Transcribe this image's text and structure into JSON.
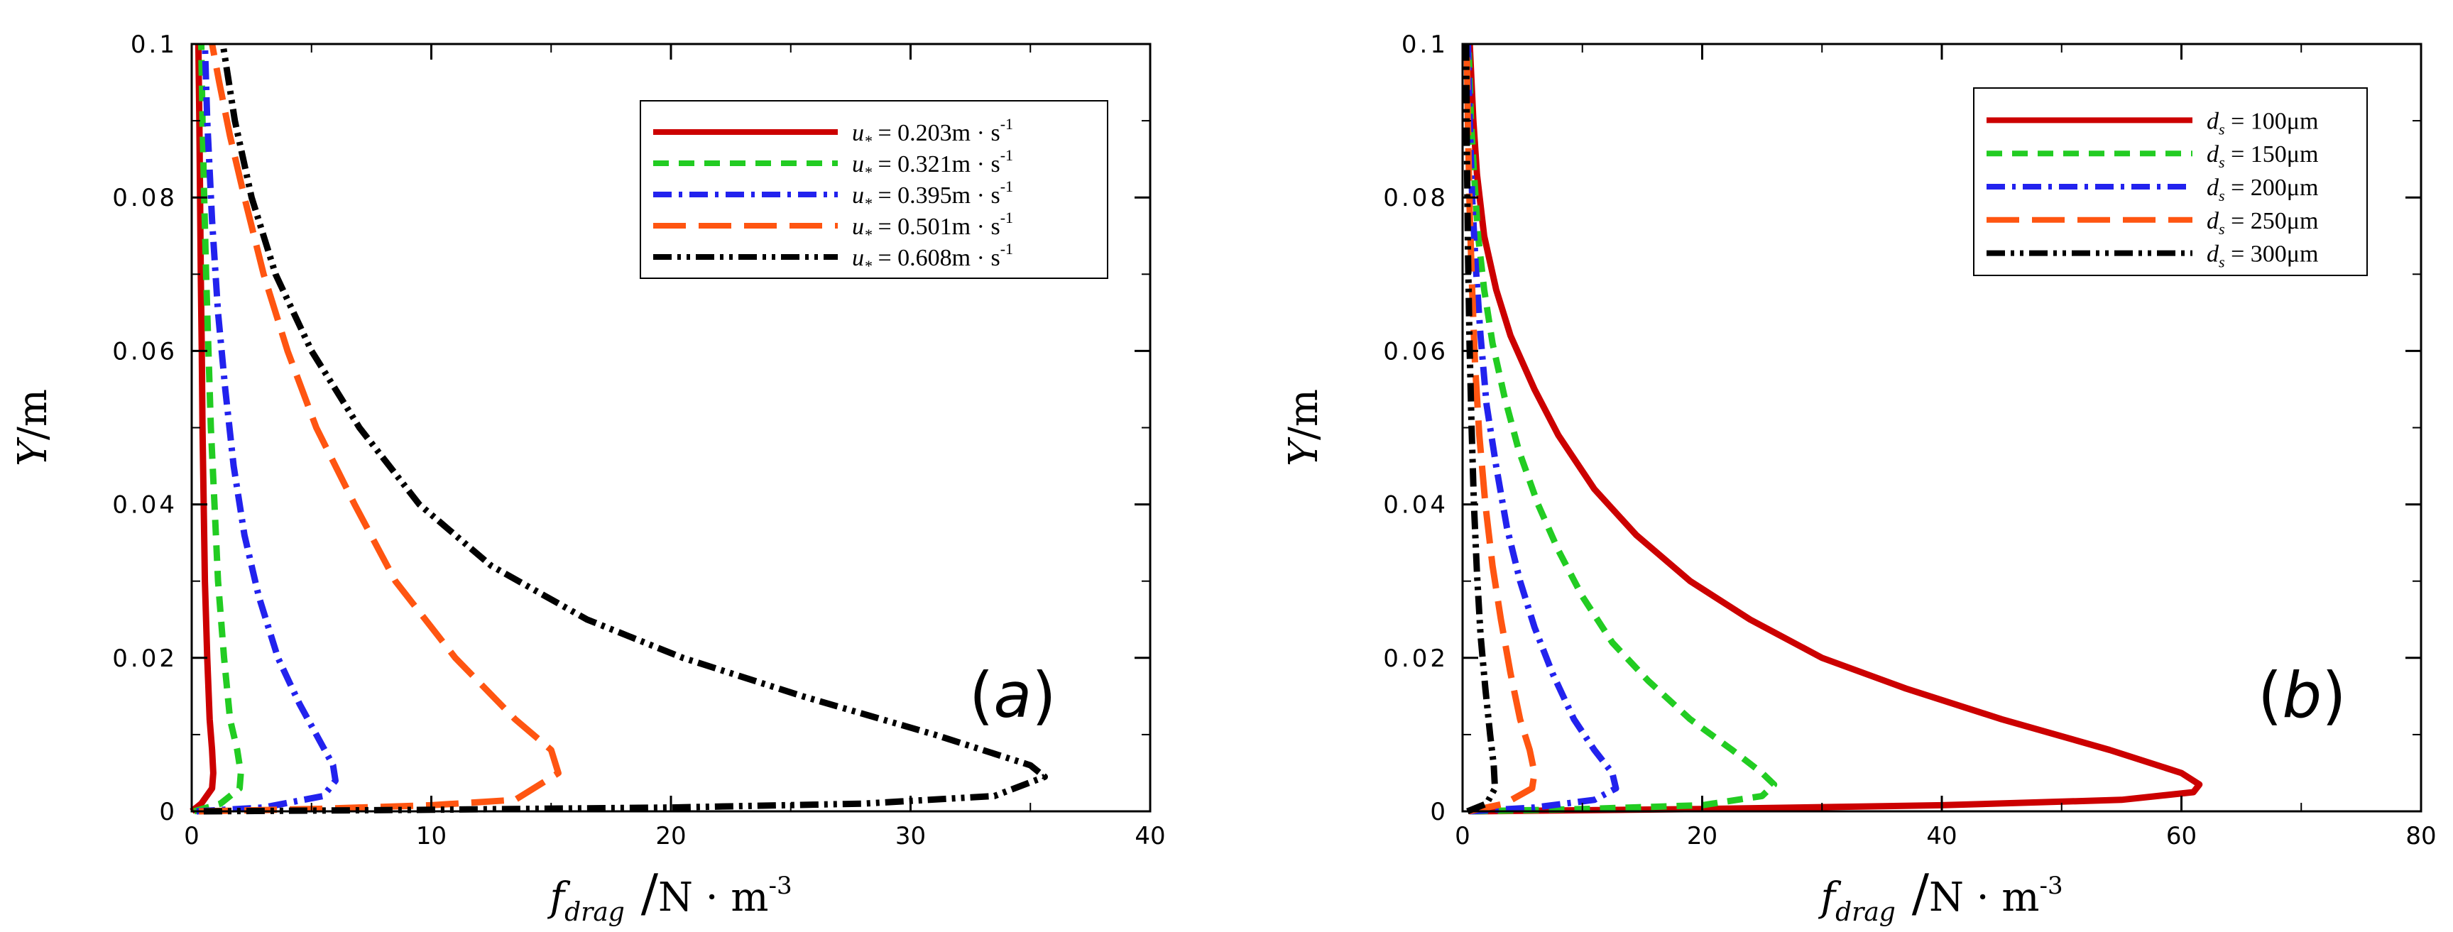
{
  "chart_data": [
    {
      "type": "line",
      "panel_label_pre": "(",
      "panel_label_var": "a",
      "panel_label_post": ")",
      "xlabel_main": "f",
      "xlabel_sub": "drag",
      "xlabel_unit": "N · m",
      "xlabel_exp": "-3",
      "ylabel_main": "Y",
      "ylabel_unit": "m",
      "xlim": [
        0,
        40
      ],
      "ylim": [
        0,
        0.1
      ],
      "xticks": [
        0,
        10,
        20,
        30,
        40
      ],
      "xtick_labels": [
        "0",
        "10",
        "20",
        "30",
        "40"
      ],
      "yticks": [
        0,
        0.02,
        0.04,
        0.06,
        0.08,
        0.1
      ],
      "ytick_labels": [
        "0",
        "0.02",
        "0.04",
        "0.06",
        "0.08",
        "0.1"
      ],
      "legend_position": "top-right",
      "grid": false,
      "series": [
        {
          "var": "u",
          "sub": "*",
          "value_text": " = 0.203m · s",
          "exp": "-1",
          "color": "#cc0000",
          "dash": "solid",
          "x": [
            0,
            0.4,
            0.85,
            0.9,
            0.85,
            0.75,
            0.65,
            0.55,
            0.5,
            0.45,
            0.42,
            0.38,
            0.35,
            0.32,
            0.3,
            0.28
          ],
          "y": [
            0,
            0.001,
            0.003,
            0.005,
            0.008,
            0.012,
            0.02,
            0.03,
            0.04,
            0.05,
            0.06,
            0.07,
            0.08,
            0.09,
            0.095,
            0.1
          ]
        },
        {
          "var": "u",
          "sub": "*",
          "value_text": " = 0.321m · s",
          "exp": "-1",
          "color": "#22cc22",
          "dash": "dashed",
          "x": [
            0.1,
            1.2,
            2.0,
            2.05,
            1.9,
            1.6,
            1.35,
            1.1,
            0.95,
            0.8,
            0.7,
            0.6,
            0.52,
            0.45,
            0.4
          ],
          "y": [
            0,
            0.001,
            0.003,
            0.005,
            0.008,
            0.012,
            0.02,
            0.03,
            0.04,
            0.05,
            0.06,
            0.07,
            0.08,
            0.09,
            0.1
          ]
        },
        {
          "var": "u",
          "sub": "*",
          "value_text": " = 0.395m · s",
          "exp": "-1",
          "color": "#2222ee",
          "dash": "dashdot",
          "x": [
            0.2,
            3.0,
            5.5,
            6.0,
            5.9,
            5.2,
            4.5,
            3.6,
            2.8,
            2.2,
            1.75,
            1.4,
            1.1,
            0.85,
            0.65,
            0.55
          ],
          "y": [
            0,
            0.0005,
            0.002,
            0.004,
            0.006,
            0.01,
            0.014,
            0.02,
            0.028,
            0.036,
            0.045,
            0.055,
            0.065,
            0.077,
            0.09,
            0.1
          ]
        },
        {
          "var": "u",
          "sub": "*",
          "value_text": " = 0.501m · s",
          "exp": "-1",
          "color": "#ff5511",
          "dash": "longdash",
          "x": [
            0.3,
            5.0,
            10.0,
            13.5,
            15.3,
            15.0,
            13.5,
            11.0,
            8.5,
            6.8,
            5.2,
            4.0,
            3.0,
            2.2,
            1.6,
            1.15,
            0.85
          ],
          "y": [
            0,
            0.0003,
            0.0008,
            0.0015,
            0.005,
            0.008,
            0.012,
            0.02,
            0.03,
            0.04,
            0.05,
            0.06,
            0.07,
            0.08,
            0.088,
            0.095,
            0.1
          ]
        },
        {
          "var": "u",
          "sub": "*",
          "value_text": " = 0.608m · s",
          "exp": "-1",
          "color": "#000000",
          "dash": "dashdotdot",
          "x": [
            0.5,
            10.0,
            20.0,
            28.0,
            33.5,
            35.6,
            35.0,
            31.0,
            25.5,
            20.5,
            16.5,
            12.5,
            9.5,
            7.0,
            5.0,
            3.5,
            2.5,
            1.8,
            1.3
          ],
          "y": [
            0,
            0.0002,
            0.0005,
            0.001,
            0.002,
            0.0045,
            0.006,
            0.01,
            0.015,
            0.02,
            0.025,
            0.032,
            0.04,
            0.05,
            0.06,
            0.07,
            0.08,
            0.09,
            0.1
          ]
        }
      ]
    },
    {
      "type": "line",
      "panel_label_pre": "(",
      "panel_label_var": "b",
      "panel_label_post": ")",
      "xlabel_main": "f",
      "xlabel_sub": "drag",
      "xlabel_unit": "N · m",
      "xlabel_exp": "-3",
      "ylabel_main": "Y",
      "ylabel_unit": "m",
      "xlim": [
        0,
        80
      ],
      "ylim": [
        0,
        0.1
      ],
      "xticks": [
        0,
        20,
        40,
        60,
        80
      ],
      "xtick_labels": [
        "0",
        "20",
        "40",
        "60",
        "80"
      ],
      "yticks": [
        0,
        0.02,
        0.04,
        0.06,
        0.08,
        0.1
      ],
      "ytick_labels": [
        "0",
        "0.02",
        "0.04",
        "0.06",
        "0.08",
        "0.1"
      ],
      "legend_position": "top-right",
      "grid": false,
      "series": [
        {
          "var": "d",
          "sub": "s",
          "value_text": " = 100μm",
          "exp": "",
          "color": "#cc0000",
          "dash": "solid",
          "x": [
            1.0,
            20.0,
            40.0,
            55.0,
            61.0,
            61.5,
            60.0,
            54.0,
            45.0,
            37.0,
            30.0,
            24.0,
            19.0,
            14.5,
            11.0,
            8.0,
            6.0,
            4.0,
            2.8,
            1.8,
            1.2,
            0.9,
            0.6
          ],
          "y": [
            0,
            0.0003,
            0.0008,
            0.0015,
            0.0025,
            0.0035,
            0.005,
            0.008,
            0.012,
            0.016,
            0.02,
            0.025,
            0.03,
            0.036,
            0.042,
            0.049,
            0.055,
            0.062,
            0.068,
            0.075,
            0.083,
            0.09,
            0.1
          ]
        },
        {
          "var": "d",
          "sub": "s",
          "value_text": " = 150μm",
          "exp": "",
          "color": "#22cc22",
          "dash": "dashed",
          "x": [
            0.8,
            10.0,
            20.0,
            25.0,
            26.0,
            25.0,
            22.5,
            19.0,
            15.5,
            12.5,
            10.0,
            8.0,
            6.3,
            4.7,
            3.5,
            2.5,
            1.8,
            1.3,
            1.0,
            0.7,
            0.5
          ],
          "y": [
            0,
            0.0003,
            0.0008,
            0.002,
            0.0035,
            0.005,
            0.008,
            0.012,
            0.017,
            0.022,
            0.028,
            0.034,
            0.04,
            0.047,
            0.054,
            0.061,
            0.068,
            0.075,
            0.082,
            0.09,
            0.1
          ]
        },
        {
          "var": "d",
          "sub": "s",
          "value_text": " = 200μm",
          "exp": "",
          "color": "#2222ee",
          "dash": "dashdot",
          "x": [
            0.6,
            6.0,
            11.0,
            12.8,
            12.5,
            11.0,
            9.3,
            7.5,
            6.0,
            4.8,
            3.7,
            2.8,
            2.0,
            1.5,
            1.1,
            0.8,
            0.6,
            0.45
          ],
          "y": [
            0,
            0.0005,
            0.0015,
            0.003,
            0.005,
            0.008,
            0.012,
            0.018,
            0.024,
            0.03,
            0.037,
            0.045,
            0.053,
            0.062,
            0.071,
            0.08,
            0.09,
            0.1
          ]
        },
        {
          "var": "d",
          "sub": "s",
          "value_text": " = 250μm",
          "exp": "",
          "color": "#ff5511",
          "dash": "longdash",
          "x": [
            0.5,
            3.5,
            5.8,
            6.0,
            5.6,
            4.8,
            4.0,
            3.2,
            2.5,
            1.9,
            1.4,
            1.05,
            0.8,
            0.6,
            0.45,
            0.35
          ],
          "y": [
            0,
            0.001,
            0.003,
            0.005,
            0.008,
            0.012,
            0.018,
            0.025,
            0.032,
            0.04,
            0.049,
            0.058,
            0.068,
            0.078,
            0.089,
            0.1
          ]
        },
        {
          "var": "d",
          "sub": "s",
          "value_text": " = 300μm",
          "exp": "",
          "color": "#000000",
          "dash": "dashdotdot",
          "x": [
            0.4,
            2.0,
            2.7,
            2.6,
            2.3,
            1.9,
            1.5,
            1.2,
            0.95,
            0.75,
            0.58,
            0.45,
            0.36,
            0.3
          ],
          "y": [
            0,
            0.001,
            0.003,
            0.006,
            0.01,
            0.016,
            0.023,
            0.031,
            0.04,
            0.05,
            0.061,
            0.073,
            0.086,
            0.1
          ]
        }
      ]
    }
  ]
}
